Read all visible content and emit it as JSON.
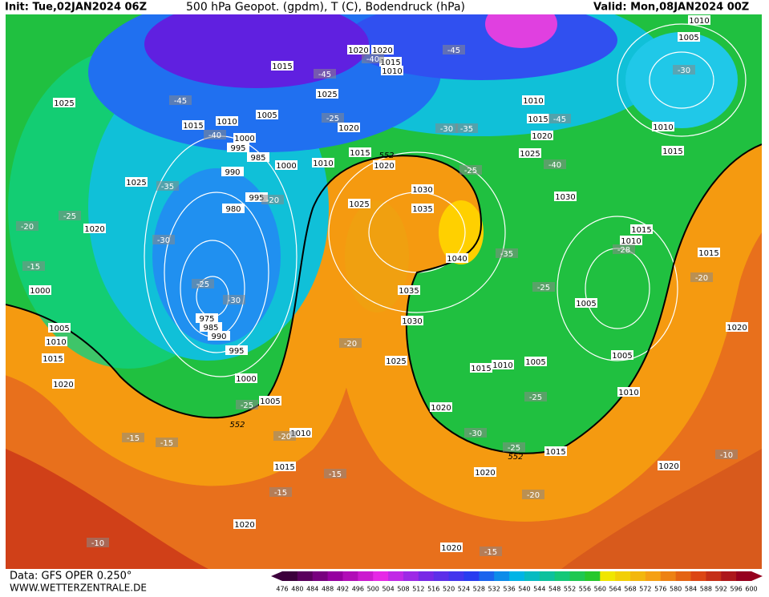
{
  "header": {
    "init": "Init: Tue,02JAN2024 06Z",
    "title": "500 hPa Geopot. (gpdm), T (C), Bodendruck (hPa)",
    "valid": "Valid: Mon,08JAN2024 00Z"
  },
  "footer": {
    "data": "Data: GFS OPER 0.250°",
    "site": "WWW.WETTERZENTRALE.DE"
  },
  "colorbar": {
    "ticks": [
      476,
      480,
      484,
      488,
      492,
      496,
      500,
      504,
      508,
      512,
      516,
      520,
      524,
      528,
      532,
      536,
      540,
      544,
      548,
      552,
      556,
      560,
      564,
      568,
      572,
      576,
      580,
      584,
      588,
      592,
      596,
      600
    ]
  },
  "isobar_labels": [
    1025,
    1015,
    1010,
    1005,
    1000,
    995,
    985,
    990,
    995,
    980,
    975,
    985,
    990,
    995,
    1000,
    1005,
    1010,
    1015,
    1020,
    1025,
    1020,
    1000,
    1005,
    1010,
    1015,
    1020,
    1015,
    1025,
    1020,
    1020,
    1020,
    1015,
    1010,
    1015,
    1020,
    1010,
    1000,
    1030,
    1035,
    1025,
    1040,
    1035,
    1030,
    1025,
    1020,
    1015,
    1010,
    1005,
    1005,
    1030,
    1025,
    1020,
    1015,
    1010,
    1010,
    1005,
    1010,
    1015,
    1015,
    1010,
    1015,
    1020,
    1005,
    1010,
    1015,
    1020,
    1020,
    1020
  ],
  "temperature_labels": [
    -45,
    -45,
    -45,
    -40,
    -35,
    -30,
    -25,
    -30,
    -25,
    -20,
    -15,
    -25,
    -20,
    -15,
    -15,
    -15,
    -15,
    -20,
    -10,
    -15,
    -20,
    -25,
    -30,
    -25,
    -25,
    -35,
    -25,
    -30,
    -35,
    -40,
    -45,
    -30,
    -28,
    -20,
    -10,
    -25,
    -20,
    -40
  ],
  "height_labels": [
    552,
    552,
    552
  ]
}
